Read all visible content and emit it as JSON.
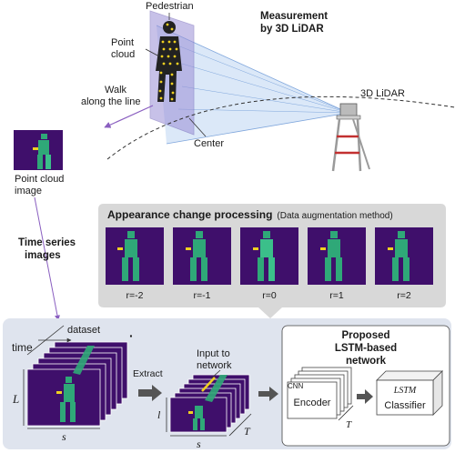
{
  "top": {
    "pedestrian": "Pedestrian",
    "point_cloud_1": "Point",
    "point_cloud_2": "cloud",
    "measurement_1": "Measurement",
    "measurement_2": "by 3D LiDAR",
    "lidar": "3D LiDAR",
    "walk_1": "Walk",
    "walk_2": "along the line",
    "center": "Center"
  },
  "left": {
    "pci_1": "Point cloud",
    "pci_2": "image",
    "ts_1": "Time series",
    "ts_2": "images"
  },
  "appearance": {
    "title": "Appearance change processing",
    "subtitle": "(Data augmentation method)",
    "r_labels": [
      "r=-2",
      "r=-1",
      "r=0",
      "r=1",
      "r=2"
    ]
  },
  "bottom": {
    "dataset": "dataset",
    "time": "time",
    "dots": "·",
    "L": "L",
    "s1": "s",
    "extract": "Extract",
    "input_1": "Input to",
    "input_2": "network",
    "l": "l",
    "s2": "s",
    "T1": "T",
    "T2": "T",
    "proposed_1": "Proposed",
    "proposed_2": "LSTM-based",
    "proposed_3": "network",
    "cnn": "CNN",
    "encoder": "Encoder",
    "lstm": "LSTM",
    "classifier": "Classifier"
  },
  "colors": {
    "bg_panel": "#dfe4ee",
    "gray_panel": "#d8d8d8",
    "purple": "#3f0f6b",
    "green": "#2fa878",
    "yellow": "#f0d020"
  }
}
